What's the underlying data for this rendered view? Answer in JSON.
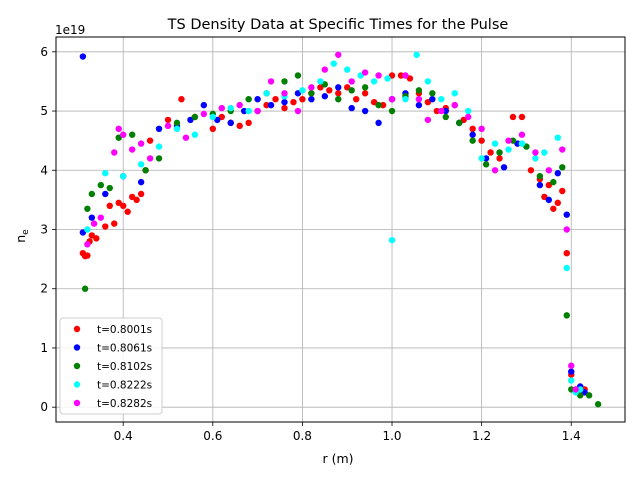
{
  "chart_data": {
    "type": "scatter",
    "title": "TS Density Data at Specific Times for the Pulse",
    "xlabel": "r (m)",
    "ylabel": "n",
    "ylabel_sub": "e",
    "y_scale_label": "1e19",
    "xlim": [
      0.25,
      1.52
    ],
    "ylim": [
      -0.25,
      6.25
    ],
    "xticks": [
      0.4,
      0.6,
      0.8,
      1.0,
      1.2,
      1.4
    ],
    "xtick_labels": [
      "0.4",
      "0.6",
      "0.8",
      "1.0",
      "1.2",
      "1.4"
    ],
    "yticks": [
      0,
      1,
      2,
      3,
      4,
      5,
      6
    ],
    "ytick_labels": [
      "0",
      "1",
      "2",
      "3",
      "4",
      "5",
      "6"
    ],
    "grid": true,
    "legend_position": "lower-left",
    "series": [
      {
        "name": "t=0.8001s",
        "color": "#ff0000",
        "x": [
          0.31,
          0.315,
          0.32,
          0.325,
          0.33,
          0.34,
          0.36,
          0.37,
          0.38,
          0.39,
          0.4,
          0.41,
          0.42,
          0.43,
          0.44,
          0.45,
          0.46,
          0.5,
          0.53,
          0.56,
          0.6,
          0.62,
          0.64,
          0.66,
          0.68,
          0.7,
          0.72,
          0.74,
          0.76,
          0.78,
          0.8,
          0.82,
          0.84,
          0.86,
          0.88,
          0.9,
          0.92,
          0.94,
          0.96,
          0.98,
          1.0,
          1.02,
          1.04,
          1.06,
          1.08,
          1.1,
          1.12,
          1.14,
          1.16,
          1.18,
          1.2,
          1.22,
          1.24,
          1.27,
          1.29,
          1.31,
          1.33,
          1.34,
          1.35,
          1.36,
          1.37,
          1.38,
          1.39,
          1.4,
          1.41,
          1.43
        ],
        "y": [
          2.6,
          2.55,
          2.56,
          2.8,
          2.9,
          2.85,
          3.05,
          3.4,
          3.1,
          3.45,
          3.4,
          3.3,
          3.55,
          3.5,
          3.6,
          4.0,
          4.5,
          4.85,
          5.2,
          4.9,
          4.7,
          4.9,
          4.8,
          4.75,
          4.8,
          5.0,
          5.1,
          5.2,
          5.05,
          5.15,
          5.2,
          5.3,
          5.4,
          5.35,
          5.3,
          5.4,
          5.2,
          5.3,
          5.15,
          5.1,
          5.6,
          5.6,
          5.55,
          5.3,
          5.15,
          5.0,
          5.05,
          5.1,
          4.85,
          4.7,
          4.5,
          4.3,
          4.2,
          4.9,
          4.9,
          4.0,
          3.85,
          3.55,
          3.75,
          3.35,
          3.45,
          3.65,
          2.6,
          0.55,
          0.3,
          0.3
        ]
      },
      {
        "name": "t=0.8061s",
        "color": "#0000ff",
        "x": [
          0.31,
          0.31,
          0.33,
          0.36,
          0.4,
          0.44,
          0.48,
          0.52,
          0.55,
          0.58,
          0.61,
          0.64,
          0.67,
          0.7,
          0.73,
          0.76,
          0.79,
          0.82,
          0.85,
          0.88,
          0.91,
          0.94,
          0.97,
          1.0,
          1.03,
          1.06,
          1.09,
          1.12,
          1.15,
          1.18,
          1.21,
          1.25,
          1.28,
          1.33,
          1.35,
          1.37,
          1.39,
          1.4,
          1.42,
          1.43
        ],
        "y": [
          5.92,
          2.95,
          3.2,
          3.6,
          3.9,
          3.8,
          4.7,
          4.75,
          4.85,
          5.1,
          4.85,
          4.8,
          5.0,
          5.2,
          5.1,
          5.15,
          5.3,
          5.2,
          5.25,
          5.4,
          5.05,
          5.0,
          4.8,
          5.2,
          5.3,
          5.1,
          5.2,
          5.0,
          4.8,
          4.6,
          4.2,
          4.05,
          4.45,
          3.75,
          3.5,
          3.95,
          3.25,
          0.6,
          0.35,
          0.25
        ]
      },
      {
        "name": "t=0.8102s",
        "color": "#008000",
        "x": [
          0.315,
          0.32,
          0.33,
          0.35,
          0.37,
          0.39,
          0.42,
          0.45,
          0.48,
          0.52,
          0.56,
          0.6,
          0.64,
          0.68,
          0.72,
          0.76,
          0.79,
          0.82,
          0.85,
          0.88,
          0.91,
          0.94,
          0.97,
          1.0,
          1.03,
          1.06,
          1.09,
          1.12,
          1.15,
          1.18,
          1.21,
          1.24,
          1.27,
          1.3,
          1.33,
          1.36,
          1.38,
          1.39,
          1.4,
          1.42,
          1.44,
          1.46
        ],
        "y": [
          2.0,
          3.35,
          3.6,
          3.75,
          3.7,
          4.55,
          4.6,
          4.0,
          4.2,
          4.8,
          4.9,
          4.95,
          5.0,
          5.2,
          5.3,
          5.5,
          5.6,
          5.3,
          5.45,
          5.2,
          5.35,
          5.4,
          5.1,
          5.0,
          5.25,
          5.35,
          5.3,
          4.9,
          4.8,
          4.5,
          4.1,
          4.3,
          4.5,
          4.4,
          3.9,
          3.8,
          4.05,
          1.55,
          0.3,
          0.2,
          0.2,
          0.05
        ]
      },
      {
        "name": "t=0.8222s",
        "color": "#00ffff",
        "x": [
          0.32,
          0.36,
          0.4,
          0.44,
          0.48,
          0.52,
          0.56,
          0.6,
          0.64,
          0.68,
          0.72,
          0.76,
          0.8,
          0.84,
          0.87,
          0.9,
          0.93,
          0.96,
          0.99,
          1.0,
          1.03,
          1.055,
          1.08,
          1.11,
          1.14,
          1.17,
          1.2,
          1.23,
          1.26,
          1.29,
          1.32,
          1.34,
          1.37,
          1.39,
          1.4,
          1.41,
          1.42
        ],
        "y": [
          3.0,
          3.95,
          3.9,
          4.1,
          4.4,
          4.7,
          4.6,
          4.9,
          5.05,
          5.0,
          5.3,
          5.25,
          5.35,
          5.5,
          5.8,
          5.7,
          5.6,
          5.5,
          5.55,
          2.82,
          5.2,
          5.95,
          5.5,
          5.2,
          5.3,
          5.0,
          4.2,
          4.45,
          4.35,
          4.45,
          4.2,
          4.3,
          4.55,
          2.35,
          0.45,
          0.25,
          0.3
        ]
      },
      {
        "name": "t=0.8282s",
        "color": "#ff00ff",
        "x": [
          0.32,
          0.335,
          0.35,
          0.38,
          0.39,
          0.4,
          0.42,
          0.44,
          0.46,
          0.5,
          0.54,
          0.58,
          0.62,
          0.66,
          0.7,
          0.73,
          0.76,
          0.79,
          0.82,
          0.85,
          0.88,
          0.91,
          0.94,
          0.97,
          1.0,
          1.03,
          1.06,
          1.08,
          1.11,
          1.14,
          1.17,
          1.2,
          1.23,
          1.26,
          1.29,
          1.32,
          1.35,
          1.38,
          1.39,
          1.4,
          1.41
        ],
        "y": [
          2.75,
          3.1,
          3.2,
          4.3,
          4.7,
          4.6,
          4.35,
          4.45,
          4.2,
          4.75,
          4.55,
          4.95,
          5.05,
          5.1,
          5.0,
          5.5,
          5.3,
          5.0,
          5.4,
          5.7,
          5.95,
          5.5,
          5.65,
          5.6,
          5.2,
          5.6,
          5.2,
          4.85,
          5.0,
          5.1,
          4.9,
          4.7,
          4.0,
          4.5,
          4.6,
          4.3,
          4.0,
          4.35,
          3.0,
          0.7,
          0.3
        ]
      }
    ]
  }
}
